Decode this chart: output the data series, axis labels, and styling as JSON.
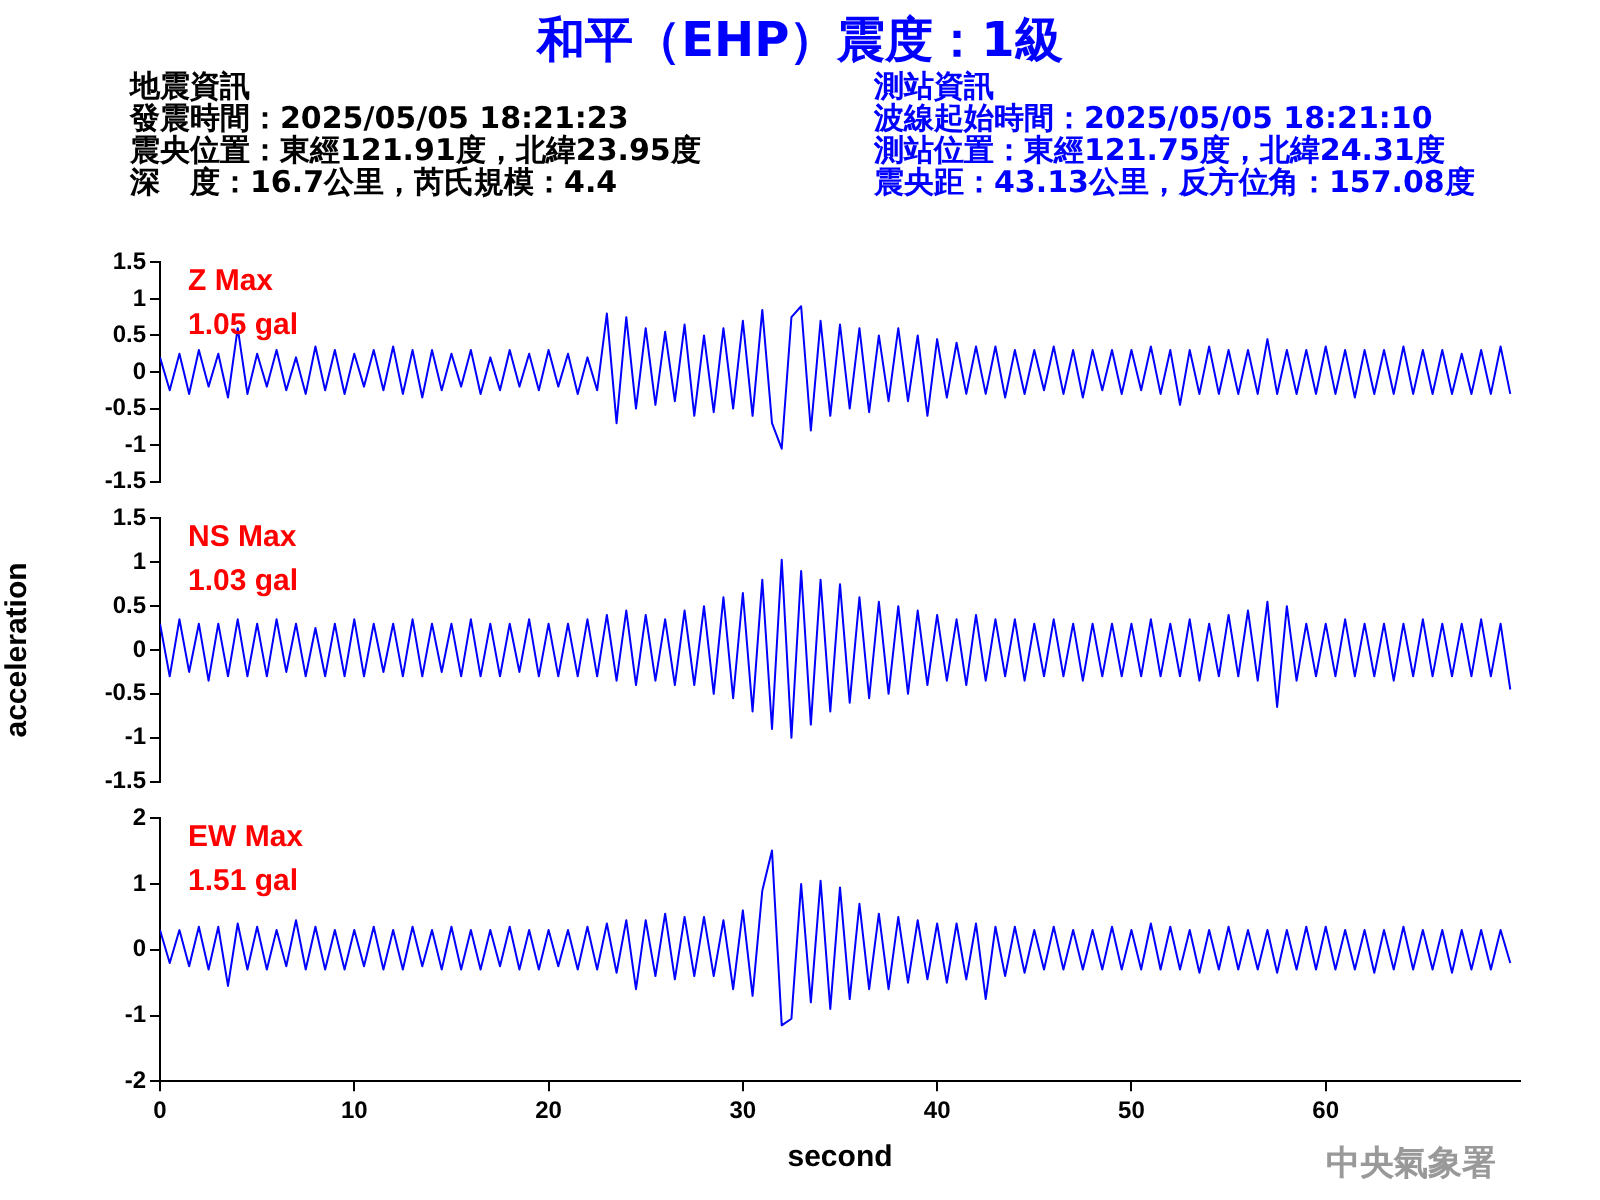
{
  "chart_data": [
    {
      "type": "line",
      "title": "和平（EHP）震度：1級",
      "annotations": [
        "地震資訊",
        "發震時間：2025/05/05 18:21:23",
        "震央位置：東經121.91度，北緯23.95度",
        "深　度：16.7公里，芮氏規模：4.4",
        "測站資訊",
        "波線起始時間：2025/05/05 18:21:10",
        "測站位置：東經121.75度，北緯24.31度",
        "震央距：43.13公里，反方位角：157.08度",
        "Z Max",
        "1.05 gal"
      ],
      "x": [
        0,
        0.5,
        1,
        1.5,
        2,
        2.5,
        3,
        3.5,
        4,
        4.5,
        5,
        5.5,
        6,
        6.5,
        7,
        7.5,
        8,
        8.5,
        9,
        9.5,
        10,
        10.5,
        11,
        11.5,
        12,
        12.5,
        13,
        13.5,
        14,
        14.5,
        15,
        15.5,
        16,
        16.5,
        17,
        17.5,
        18,
        18.5,
        19,
        19.5,
        20,
        20.5,
        21,
        21.5,
        22,
        22.5,
        23,
        23.5,
        24,
        24.5,
        25,
        25.5,
        26,
        26.5,
        27,
        27.5,
        28,
        28.5,
        29,
        29.5,
        30,
        30.5,
        31,
        31.5,
        32,
        32.5,
        33,
        33.5,
        34,
        34.5,
        35,
        35.5,
        36,
        36.5,
        37,
        37.5,
        38,
        38.5,
        39,
        39.5,
        40,
        40.5,
        41,
        41.5,
        42,
        42.5,
        43,
        43.5,
        44,
        44.5,
        45,
        45.5,
        46,
        46.5,
        47,
        47.5,
        48,
        48.5,
        49,
        49.5,
        50,
        50.5,
        51,
        51.5,
        52,
        52.5,
        53,
        53.5,
        54,
        54.5,
        55,
        55.5,
        56,
        56.5,
        57,
        57.5,
        58,
        58.5,
        59,
        59.5,
        60,
        60.5,
        61,
        61.5,
        62,
        62.5,
        63,
        63.5,
        64,
        64.5,
        65,
        65.5,
        66,
        66.5,
        67,
        67.5,
        68,
        68.5,
        69,
        69.5
      ],
      "series": [
        {
          "color": "#0000ff",
          "values": [
            0.2,
            -0.25,
            0.25,
            -0.3,
            0.3,
            -0.2,
            0.25,
            -0.35,
            0.6,
            -0.3,
            0.25,
            -0.2,
            0.3,
            -0.25,
            0.2,
            -0.3,
            0.35,
            -0.25,
            0.3,
            -0.3,
            0.25,
            -0.2,
            0.3,
            -0.25,
            0.35,
            -0.3,
            0.3,
            -0.35,
            0.3,
            -0.25,
            0.25,
            -0.2,
            0.3,
            -0.3,
            0.2,
            -0.25,
            0.3,
            -0.2,
            0.25,
            -0.25,
            0.3,
            -0.2,
            0.25,
            -0.3,
            0.2,
            -0.25,
            0.8,
            -0.7,
            0.75,
            -0.5,
            0.6,
            -0.45,
            0.55,
            -0.4,
            0.65,
            -0.6,
            0.5,
            -0.55,
            0.6,
            -0.5,
            0.7,
            -0.6,
            0.85,
            -0.7,
            -1.05,
            0.75,
            0.9,
            -0.8,
            0.7,
            -0.6,
            0.65,
            -0.5,
            0.6,
            -0.55,
            0.5,
            -0.4,
            0.6,
            -0.4,
            0.5,
            -0.6,
            0.45,
            -0.35,
            0.4,
            -0.3,
            0.35,
            -0.3,
            0.35,
            -0.35,
            0.3,
            -0.3,
            0.3,
            -0.25,
            0.35,
            -0.3,
            0.3,
            -0.35,
            0.3,
            -0.25,
            0.3,
            -0.3,
            0.3,
            -0.25,
            0.35,
            -0.3,
            0.3,
            -0.45,
            0.3,
            -0.3,
            0.35,
            -0.3,
            0.3,
            -0.3,
            0.3,
            -0.3,
            0.45,
            -0.3,
            0.3,
            -0.3,
            0.3,
            -0.3,
            0.35,
            -0.3,
            0.3,
            -0.35,
            0.3,
            -0.3,
            0.3,
            -0.3,
            0.35,
            -0.3,
            0.3,
            -0.3,
            0.3,
            -0.3,
            0.25,
            -0.3,
            0.3,
            -0.3,
            0.35,
            -0.3
          ]
        }
      ],
      "ylim": [
        -1.5,
        1.5
      ],
      "yticks": [
        -1.5,
        -1,
        -0.5,
        0,
        0.5,
        1,
        1.5
      ],
      "tick_labels": "y",
      "grid": false,
      "legend": false,
      "marker": "none",
      "line_style": "solid"
    },
    {
      "type": "line",
      "ylabel": "acceleration",
      "annotations": [
        "NS Max",
        "1.03 gal"
      ],
      "x": [
        0,
        0.5,
        1,
        1.5,
        2,
        2.5,
        3,
        3.5,
        4,
        4.5,
        5,
        5.5,
        6,
        6.5,
        7,
        7.5,
        8,
        8.5,
        9,
        9.5,
        10,
        10.5,
        11,
        11.5,
        12,
        12.5,
        13,
        13.5,
        14,
        14.5,
        15,
        15.5,
        16,
        16.5,
        17,
        17.5,
        18,
        18.5,
        19,
        19.5,
        20,
        20.5,
        21,
        21.5,
        22,
        22.5,
        23,
        23.5,
        24,
        24.5,
        25,
        25.5,
        26,
        26.5,
        27,
        27.5,
        28,
        28.5,
        29,
        29.5,
        30,
        30.5,
        31,
        31.5,
        32,
        32.5,
        33,
        33.5,
        34,
        34.5,
        35,
        35.5,
        36,
        36.5,
        37,
        37.5,
        38,
        38.5,
        39,
        39.5,
        40,
        40.5,
        41,
        41.5,
        42,
        42.5,
        43,
        43.5,
        44,
        44.5,
        45,
        45.5,
        46,
        46.5,
        47,
        47.5,
        48,
        48.5,
        49,
        49.5,
        50,
        50.5,
        51,
        51.5,
        52,
        52.5,
        53,
        53.5,
        54,
        54.5,
        55,
        55.5,
        56,
        56.5,
        57,
        57.5,
        58,
        58.5,
        59,
        59.5,
        60,
        60.5,
        61,
        61.5,
        62,
        62.5,
        63,
        63.5,
        64,
        64.5,
        65,
        65.5,
        66,
        66.5,
        67,
        67.5,
        68,
        68.5,
        69,
        69.5
      ],
      "series": [
        {
          "color": "#0000ff",
          "values": [
            0.3,
            -0.3,
            0.35,
            -0.25,
            0.3,
            -0.35,
            0.3,
            -0.3,
            0.35,
            -0.3,
            0.3,
            -0.3,
            0.35,
            -0.25,
            0.3,
            -0.3,
            0.25,
            -0.3,
            0.3,
            -0.3,
            0.35,
            -0.3,
            0.3,
            -0.25,
            0.3,
            -0.3,
            0.35,
            -0.3,
            0.3,
            -0.25,
            0.3,
            -0.3,
            0.35,
            -0.3,
            0.3,
            -0.3,
            0.3,
            -0.25,
            0.35,
            -0.3,
            0.3,
            -0.3,
            0.3,
            -0.3,
            0.35,
            -0.3,
            0.4,
            -0.35,
            0.45,
            -0.4,
            0.4,
            -0.35,
            0.35,
            -0.4,
            0.45,
            -0.4,
            0.5,
            -0.5,
            0.6,
            -0.55,
            0.65,
            -0.7,
            0.8,
            -0.9,
            1.03,
            -1.0,
            0.9,
            -0.85,
            0.8,
            -0.7,
            0.75,
            -0.6,
            0.6,
            -0.55,
            0.55,
            -0.5,
            0.5,
            -0.5,
            0.45,
            -0.4,
            0.4,
            -0.35,
            0.35,
            -0.4,
            0.4,
            -0.35,
            0.35,
            -0.3,
            0.35,
            -0.35,
            0.3,
            -0.3,
            0.35,
            -0.3,
            0.3,
            -0.35,
            0.3,
            -0.3,
            0.3,
            -0.3,
            0.3,
            -0.3,
            0.35,
            -0.3,
            0.3,
            -0.3,
            0.35,
            -0.35,
            0.3,
            -0.3,
            0.4,
            -0.3,
            0.45,
            -0.35,
            0.55,
            -0.65,
            0.5,
            -0.35,
            0.3,
            -0.3,
            0.3,
            -0.3,
            0.35,
            -0.3,
            0.3,
            -0.3,
            0.3,
            -0.35,
            0.3,
            -0.3,
            0.35,
            -0.3,
            0.3,
            -0.3,
            0.3,
            -0.3,
            0.35,
            -0.3,
            0.3,
            -0.45
          ]
        }
      ],
      "ylim": [
        -1.5,
        1.5
      ],
      "yticks": [
        -1.5,
        -1,
        -0.5,
        0,
        0.5,
        1,
        1.5
      ],
      "tick_labels": "y",
      "grid": false,
      "legend": false,
      "marker": "none",
      "line_style": "solid"
    },
    {
      "type": "line",
      "xlabel": "second",
      "annotations": [
        "EW Max",
        "1.51 gal",
        "中央氣象署"
      ],
      "x": [
        0,
        0.5,
        1,
        1.5,
        2,
        2.5,
        3,
        3.5,
        4,
        4.5,
        5,
        5.5,
        6,
        6.5,
        7,
        7.5,
        8,
        8.5,
        9,
        9.5,
        10,
        10.5,
        11,
        11.5,
        12,
        12.5,
        13,
        13.5,
        14,
        14.5,
        15,
        15.5,
        16,
        16.5,
        17,
        17.5,
        18,
        18.5,
        19,
        19.5,
        20,
        20.5,
        21,
        21.5,
        22,
        22.5,
        23,
        23.5,
        24,
        24.5,
        25,
        25.5,
        26,
        26.5,
        27,
        27.5,
        28,
        28.5,
        29,
        29.5,
        30,
        30.5,
        31,
        31.5,
        32,
        32.5,
        33,
        33.5,
        34,
        34.5,
        35,
        35.5,
        36,
        36.5,
        37,
        37.5,
        38,
        38.5,
        39,
        39.5,
        40,
        40.5,
        41,
        41.5,
        42,
        42.5,
        43,
        43.5,
        44,
        44.5,
        45,
        45.5,
        46,
        46.5,
        47,
        47.5,
        48,
        48.5,
        49,
        49.5,
        50,
        50.5,
        51,
        51.5,
        52,
        52.5,
        53,
        53.5,
        54,
        54.5,
        55,
        55.5,
        56,
        56.5,
        57,
        57.5,
        58,
        58.5,
        59,
        59.5,
        60,
        60.5,
        61,
        61.5,
        62,
        62.5,
        63,
        63.5,
        64,
        64.5,
        65,
        65.5,
        66,
        66.5,
        67,
        67.5,
        68,
        68.5,
        69,
        69.5
      ],
      "series": [
        {
          "color": "#0000ff",
          "values": [
            0.3,
            -0.2,
            0.3,
            -0.25,
            0.35,
            -0.3,
            0.35,
            -0.55,
            0.4,
            -0.3,
            0.35,
            -0.3,
            0.3,
            -0.25,
            0.45,
            -0.3,
            0.35,
            -0.3,
            0.3,
            -0.3,
            0.3,
            -0.25,
            0.35,
            -0.3,
            0.3,
            -0.3,
            0.35,
            -0.25,
            0.3,
            -0.3,
            0.35,
            -0.3,
            0.3,
            -0.3,
            0.3,
            -0.25,
            0.35,
            -0.3,
            0.3,
            -0.3,
            0.3,
            -0.25,
            0.3,
            -0.3,
            0.35,
            -0.3,
            0.4,
            -0.35,
            0.45,
            -0.6,
            0.45,
            -0.4,
            0.55,
            -0.45,
            0.5,
            -0.4,
            0.5,
            -0.4,
            0.45,
            -0.6,
            0.6,
            -0.7,
            0.9,
            1.51,
            -1.15,
            -1.05,
            1.0,
            -0.8,
            1.05,
            -0.9,
            0.95,
            -0.75,
            0.7,
            -0.6,
            0.55,
            -0.6,
            0.5,
            -0.5,
            0.45,
            -0.45,
            0.4,
            -0.5,
            0.4,
            -0.45,
            0.4,
            -0.75,
            0.35,
            -0.4,
            0.35,
            -0.35,
            0.3,
            -0.3,
            0.35,
            -0.3,
            0.3,
            -0.3,
            0.3,
            -0.3,
            0.35,
            -0.3,
            0.3,
            -0.3,
            0.4,
            -0.3,
            0.35,
            -0.3,
            0.3,
            -0.35,
            0.3,
            -0.3,
            0.35,
            -0.3,
            0.3,
            -0.3,
            0.3,
            -0.35,
            0.3,
            -0.3,
            0.35,
            -0.3,
            0.35,
            -0.3,
            0.3,
            -0.3,
            0.3,
            -0.35,
            0.3,
            -0.3,
            0.35,
            -0.3,
            0.3,
            -0.3,
            0.3,
            -0.35,
            0.3,
            -0.3,
            0.3,
            -0.3,
            0.3,
            -0.2
          ]
        }
      ],
      "xlim": [
        0,
        70
      ],
      "xticks": [
        0,
        10,
        20,
        30,
        40,
        50,
        60
      ],
      "ylim": [
        -2,
        2
      ],
      "yticks": [
        -2,
        -1,
        0,
        1,
        2
      ],
      "grid": false,
      "legend": false,
      "marker": "none",
      "line_style": "solid"
    }
  ]
}
